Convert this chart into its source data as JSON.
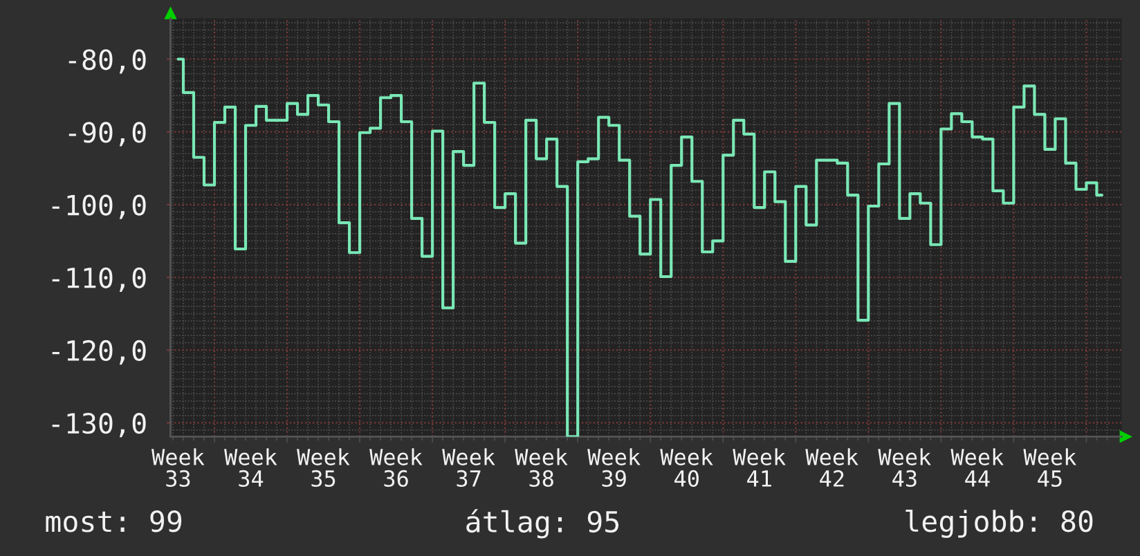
{
  "chart_data": {
    "type": "step",
    "categories": [
      "Week 33",
      null,
      null,
      null,
      null,
      null,
      null,
      "Week 34",
      null,
      null,
      null,
      null,
      null,
      null,
      "Week 35",
      null,
      null,
      null,
      null,
      null,
      null,
      "Week 36",
      null,
      null,
      null,
      null,
      null,
      null,
      "Week 37",
      null,
      null,
      null,
      null,
      null,
      null,
      "Week 38",
      null,
      null,
      null,
      null,
      null,
      null,
      "Week 39",
      null,
      null,
      null,
      null,
      null,
      null,
      "Week 40",
      null,
      null,
      null,
      null,
      null,
      null,
      "Week 41",
      null,
      null,
      null,
      null,
      null,
      null,
      "Week 42",
      null,
      null,
      null,
      null,
      null,
      null,
      "Week 43",
      null,
      null,
      null,
      null,
      null,
      null,
      "Week 44",
      null,
      null,
      null,
      null,
      null,
      null,
      "Week 45",
      null,
      null,
      null,
      null,
      null
    ],
    "values": [
      -80.0,
      -84.6,
      -93.5,
      -97.3,
      -88.7,
      -86.6,
      -106.1,
      -89.1,
      -86.5,
      -88.4,
      -88.4,
      -86.1,
      -87.6,
      -85.0,
      -86.3,
      -88.6,
      -102.5,
      -106.6,
      -90.1,
      -89.5,
      -85.3,
      -85.0,
      -88.6,
      -101.9,
      -107.1,
      -89.9,
      -114.2,
      -92.7,
      -94.6,
      -83.3,
      -88.7,
      -100.4,
      -98.5,
      -105.3,
      -88.4,
      -93.7,
      -91.0,
      -97.5,
      -131.9,
      -94.1,
      -93.7,
      -88.0,
      -89.1,
      -93.9,
      -101.6,
      -106.8,
      -99.3,
      -109.9,
      -94.6,
      -90.7,
      -96.8,
      -106.5,
      -105.0,
      -93.2,
      -88.4,
      -90.3,
      -100.4,
      -95.5,
      -99.6,
      -107.8,
      -97.5,
      -102.8,
      -93.9,
      -93.9,
      -94.3,
      -98.7,
      -115.9,
      -100.2,
      -94.4,
      -86.1,
      -101.9,
      -98.5,
      -99.8,
      -105.5,
      -89.6,
      -87.5,
      -88.6,
      -90.7,
      -91.0,
      -98.1,
      -99.8,
      -86.6,
      -83.7,
      -87.6,
      -92.4,
      -88.2,
      -94.3,
      -97.9,
      -97.0,
      -98.7
    ],
    "color": "#7ae8b6",
    "ylim": [
      -131.9,
      -74.4
    ],
    "yticks": [
      {
        "value": -130,
        "label": "-130,0"
      },
      {
        "value": -120,
        "label": "-120,0"
      },
      {
        "value": -110,
        "label": "-110,0"
      },
      {
        "value": -100,
        "label": "-100,0"
      },
      {
        "value": -90,
        "label": "-90,0"
      },
      {
        "value": -80,
        "label": "-80,0"
      }
    ],
    "grid": true,
    "annotations": [
      "most: 99",
      "átlag: 95",
      "legjobb: 80"
    ]
  }
}
